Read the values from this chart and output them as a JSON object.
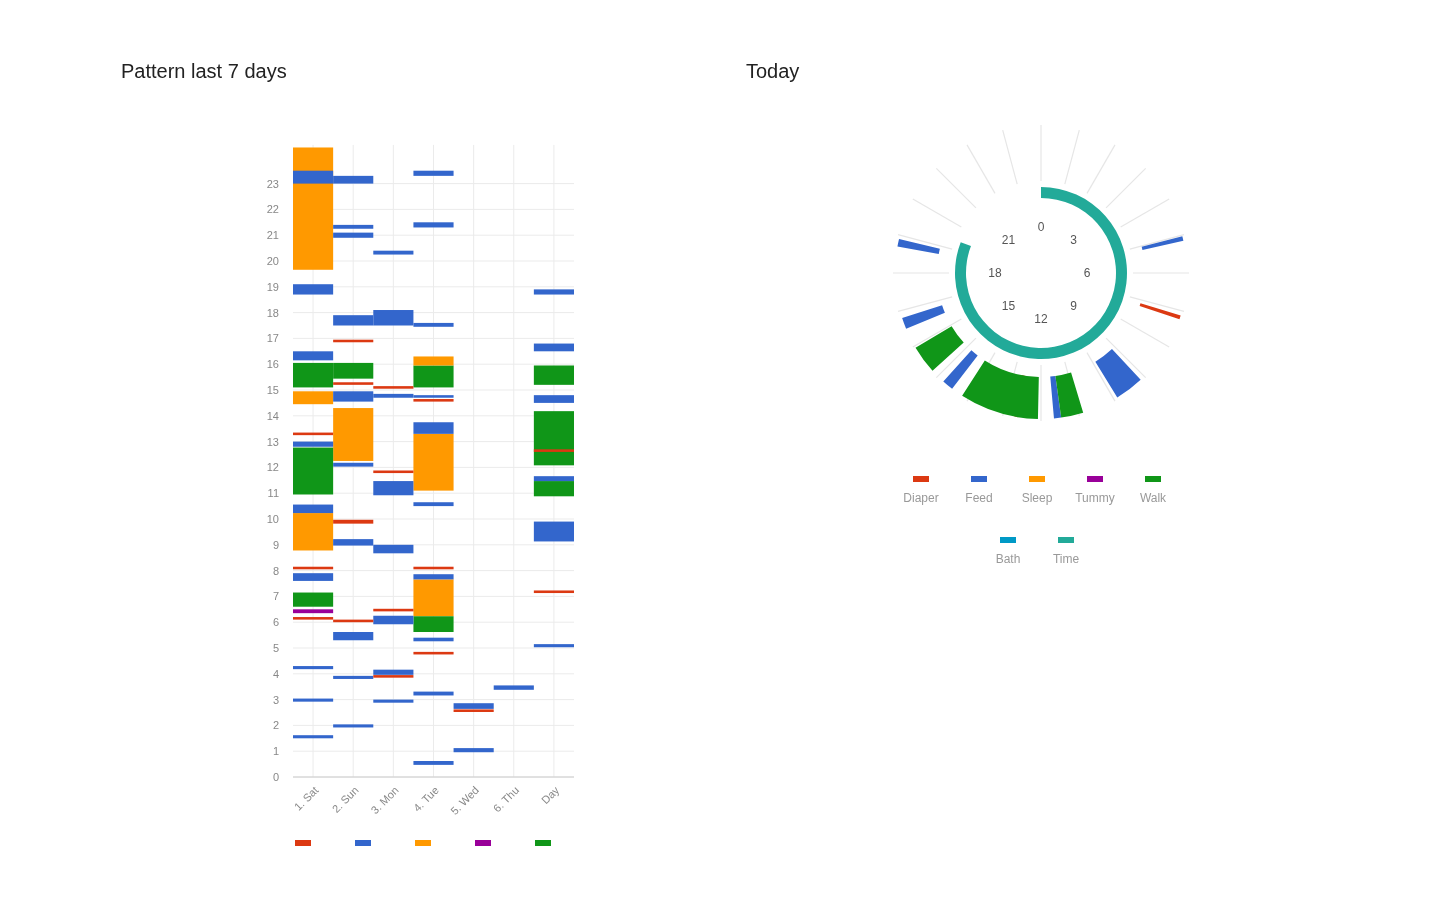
{
  "chart_data": [
    {
      "type": "bar",
      "title": "Pattern last 7 days",
      "categories": [
        "1. Sat",
        "2. Sun",
        "3. Mon",
        "4. Tue",
        "5. Wed",
        "6. Thu",
        "Day"
      ],
      "ylim": [
        0,
        24.5
      ],
      "yticks": [
        0,
        1,
        2,
        3,
        4,
        5,
        6,
        7,
        8,
        9,
        10,
        11,
        12,
        13,
        14,
        15,
        16,
        17,
        18,
        19,
        20,
        21,
        22,
        23
      ],
      "grid": true,
      "series": [
        {
          "color": "#dc3912",
          "x": [
            "1. Sat",
            "1. Sat",
            "1. Sat",
            "2. Sun",
            "2. Sun",
            "2. Sun",
            "2. Sun",
            "3. Mon",
            "3. Mon",
            "3. Mon",
            "3. Mon",
            "4. Tue",
            "4. Tue",
            "4. Tue",
            "5. Wed",
            "Day",
            "Day"
          ],
          "base": [
            13.25,
            8.05,
            6.1,
            16.85,
            15.2,
            9.82,
            6.0,
            15.05,
            11.78,
            6.42,
            3.85,
            14.55,
            8.05,
            4.75,
            2.52,
            12.6,
            7.13
          ],
          "values": [
            0.1,
            0.1,
            0.1,
            0.1,
            0.1,
            0.15,
            0.1,
            0.1,
            0.1,
            0.1,
            0.1,
            0.1,
            0.1,
            0.1,
            0.1,
            0.1,
            0.1
          ]
        },
        {
          "color": "#3366cc",
          "x": [
            "1. Sat",
            "1. Sat",
            "1. Sat",
            "1. Sat",
            "1. Sat",
            "1. Sat",
            "1. Sat",
            "1. Sat",
            "1. Sat",
            "2. Sun",
            "2. Sun",
            "2. Sun",
            "2. Sun",
            "2. Sun",
            "2. Sun",
            "2. Sun",
            "2. Sun",
            "2. Sun",
            "2. Sun",
            "3. Mon",
            "3. Mon",
            "3. Mon",
            "3. Mon",
            "3. Mon",
            "3. Mon",
            "3. Mon",
            "3. Mon",
            "4. Tue",
            "4. Tue",
            "4. Tue",
            "4. Tue",
            "4. Tue",
            "4. Tue",
            "4. Tue",
            "4. Tue",
            "4. Tue",
            "4. Tue",
            "5. Wed",
            "5. Wed",
            "6. Thu",
            "Day",
            "Day",
            "Day",
            "Day",
            "Day",
            "Day"
          ],
          "base": [
            23.0,
            18.7,
            16.15,
            12.8,
            10.23,
            7.6,
            4.18,
            2.92,
            1.5,
            23.0,
            21.25,
            20.9,
            17.5,
            14.55,
            12.03,
            8.97,
            5.3,
            3.8,
            1.92,
            20.25,
            17.5,
            14.7,
            10.92,
            8.67,
            5.92,
            3.96,
            2.88,
            23.3,
            21.3,
            17.45,
            14.7,
            13.3,
            10.5,
            7.66,
            5.26,
            3.16,
            0.47,
            2.64,
            0.96,
            3.38,
            18.7,
            16.5,
            14.5,
            11.47,
            9.13,
            5.03
          ],
          "values": [
            0.5,
            0.4,
            0.35,
            0.2,
            0.33,
            0.3,
            0.12,
            0.12,
            0.12,
            0.3,
            0.15,
            0.2,
            0.4,
            0.4,
            0.15,
            0.25,
            0.32,
            0.12,
            0.12,
            0.15,
            0.6,
            0.15,
            0.55,
            0.33,
            0.33,
            0.2,
            0.12,
            0.2,
            0.2,
            0.15,
            0.1,
            0.45,
            0.15,
            0.2,
            0.14,
            0.15,
            0.15,
            0.22,
            0.16,
            0.17,
            0.2,
            0.3,
            0.3,
            0.19,
            0.77,
            0.12
          ]
        },
        {
          "color": "#ff9900",
          "x": [
            "1. Sat",
            "1. Sat",
            "1. Sat",
            "2. Sun",
            "4. Tue",
            "4. Tue",
            "4. Tue"
          ],
          "base": [
            19.66,
            14.45,
            8.78,
            12.25,
            15.95,
            11.1,
            6.23
          ],
          "values": [
            4.74,
            0.5,
            1.45,
            2.05,
            0.35,
            2.2,
            1.43
          ]
        },
        {
          "color": "#990099",
          "x": [
            "1. Sat"
          ],
          "base": [
            6.35
          ],
          "values": [
            0.15
          ]
        },
        {
          "color": "#109618",
          "x": [
            "1. Sat",
            "1. Sat",
            "1. Sat",
            "2. Sun",
            "4. Tue",
            "4. Tue",
            "Day",
            "Day",
            "Day"
          ],
          "base": [
            15.1,
            10.95,
            6.6,
            15.44,
            15.1,
            5.62,
            15.2,
            12.08,
            10.88
          ],
          "values": [
            0.95,
            1.82,
            0.55,
            0.61,
            0.85,
            0.61,
            0.75,
            2.1,
            0.59
          ]
        }
      ]
    },
    {
      "type": "other",
      "title": "Today",
      "legend": "bottom",
      "annotations": [
        "0",
        "3",
        "6",
        "9",
        "12",
        "15",
        "18",
        "21"
      ],
      "series": [
        {
          "name": "Diaper",
          "color": "#dc3912"
        },
        {
          "name": "Feed",
          "color": "#3366cc"
        },
        {
          "name": "Sleep",
          "color": "#ff9900"
        },
        {
          "name": "Tummy",
          "color": "#990099"
        },
        {
          "name": "Walk",
          "color": "#109618"
        },
        {
          "name": "Bath",
          "color": "#0099c6"
        },
        {
          "name": "Time",
          "color": "#22aa99"
        }
      ]
    }
  ]
}
